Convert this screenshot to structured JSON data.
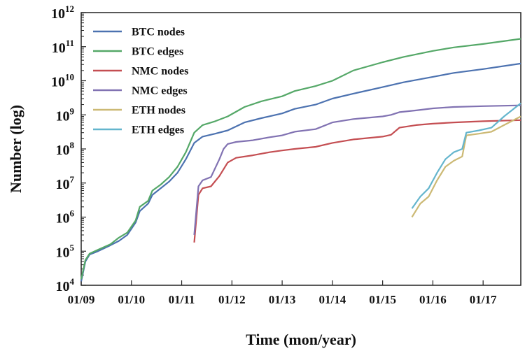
{
  "chart_data": {
    "type": "line",
    "xlabel": "Time (mon/year)",
    "ylabel": "Number (log)",
    "yscale": "log",
    "ylim": [
      10000,
      1000000000000
    ],
    "xlim": [
      "01/09",
      "10/17"
    ],
    "x_ticks": [
      "01/09",
      "01/10",
      "01/11",
      "01/12",
      "01/13",
      "01/14",
      "01/15",
      "01/16",
      "01/17"
    ],
    "y_ticks": [
      {
        "value": 10000,
        "base": "10",
        "exp": "4"
      },
      {
        "value": 100000,
        "base": "10",
        "exp": "5"
      },
      {
        "value": 1000000,
        "base": "10",
        "exp": "6"
      },
      {
        "value": 10000000,
        "base": "10",
        "exp": "7"
      },
      {
        "value": 100000000,
        "base": "10",
        "exp": "8"
      },
      {
        "value": 1000000000,
        "base": "10",
        "exp": "9"
      },
      {
        "value": 10000000000,
        "base": "10",
        "exp": "10"
      },
      {
        "value": 100000000000,
        "base": "10",
        "exp": "11"
      },
      {
        "value": 1000000000000,
        "base": "10",
        "exp": "12"
      }
    ],
    "grid": false,
    "legend_position": "top-left",
    "series": [
      {
        "name": "BTC nodes",
        "color": "#4c72b0",
        "points": [
          [
            "01/09",
            13000
          ],
          [
            "02/09",
            50000
          ],
          [
            "03/09",
            80000
          ],
          [
            "05/09",
            100000
          ],
          [
            "08/09",
            150000
          ],
          [
            "10/09",
            200000
          ],
          [
            "12/09",
            300000
          ],
          [
            "02/10",
            700000
          ],
          [
            "03/10",
            1500000
          ],
          [
            "05/10",
            2500000
          ],
          [
            "06/10",
            4500000
          ],
          [
            "08/10",
            7000000
          ],
          [
            "10/10",
            11000000
          ],
          [
            "12/10",
            20000000
          ],
          [
            "02/11",
            50000000
          ],
          [
            "04/11",
            150000000
          ],
          [
            "06/11",
            230000000
          ],
          [
            "09/11",
            280000000
          ],
          [
            "12/11",
            350000000
          ],
          [
            "04/12",
            600000000
          ],
          [
            "08/12",
            800000000
          ],
          [
            "01/13",
            1100000000
          ],
          [
            "04/13",
            1500000000
          ],
          [
            "09/13",
            2000000000
          ],
          [
            "01/14",
            3000000000
          ],
          [
            "06/14",
            4200000000
          ],
          [
            "01/15",
            6500000000
          ],
          [
            "06/15",
            9000000000
          ],
          [
            "01/16",
            13000000000
          ],
          [
            "06/16",
            17000000000
          ],
          [
            "01/17",
            22000000000
          ],
          [
            "10/17",
            32000000000
          ]
        ]
      },
      {
        "name": "BTC edges",
        "color": "#55a868",
        "points": [
          [
            "01/09",
            15000
          ],
          [
            "02/09",
            55000
          ],
          [
            "03/09",
            85000
          ],
          [
            "05/09",
            110000
          ],
          [
            "08/09",
            160000
          ],
          [
            "10/09",
            250000
          ],
          [
            "12/09",
            350000
          ],
          [
            "02/10",
            800000
          ],
          [
            "03/10",
            2000000
          ],
          [
            "05/10",
            3000000
          ],
          [
            "06/10",
            6000000
          ],
          [
            "08/10",
            9000000
          ],
          [
            "10/10",
            15000000
          ],
          [
            "12/10",
            30000000
          ],
          [
            "02/11",
            80000000
          ],
          [
            "04/11",
            300000000
          ],
          [
            "06/11",
            500000000
          ],
          [
            "09/11",
            650000000
          ],
          [
            "12/11",
            900000000
          ],
          [
            "04/12",
            1700000000
          ],
          [
            "08/12",
            2500000000
          ],
          [
            "01/13",
            3500000000
          ],
          [
            "04/13",
            5000000000
          ],
          [
            "09/13",
            7000000000
          ],
          [
            "01/14",
            10000000000
          ],
          [
            "06/14",
            20000000000
          ],
          [
            "01/15",
            35000000000
          ],
          [
            "06/15",
            50000000000
          ],
          [
            "01/16",
            75000000000
          ],
          [
            "06/16",
            95000000000
          ],
          [
            "01/17",
            120000000000
          ],
          [
            "10/17",
            170000000000
          ]
        ]
      },
      {
        "name": "NMC nodes",
        "color": "#c44e52",
        "points": [
          [
            "04/11",
            180000
          ],
          [
            "05/11",
            4500000
          ],
          [
            "06/11",
            7000000
          ],
          [
            "08/11",
            8000000
          ],
          [
            "10/11",
            16000000
          ],
          [
            "12/11",
            40000000
          ],
          [
            "02/12",
            55000000
          ],
          [
            "06/12",
            65000000
          ],
          [
            "10/12",
            80000000
          ],
          [
            "01/13",
            90000000
          ],
          [
            "04/13",
            100000000
          ],
          [
            "09/13",
            115000000
          ],
          [
            "01/14",
            150000000
          ],
          [
            "06/14",
            190000000
          ],
          [
            "01/15",
            230000000
          ],
          [
            "03/15",
            260000000
          ],
          [
            "05/15",
            420000000
          ],
          [
            "09/15",
            500000000
          ],
          [
            "01/16",
            550000000
          ],
          [
            "06/16",
            600000000
          ],
          [
            "01/17",
            650000000
          ],
          [
            "10/17",
            700000000
          ]
        ]
      },
      {
        "name": "NMC edges",
        "color": "#8172b2",
        "points": [
          [
            "04/11",
            300000
          ],
          [
            "05/11",
            8000000
          ],
          [
            "06/11",
            12000000
          ],
          [
            "08/11",
            15000000
          ],
          [
            "10/11",
            50000000
          ],
          [
            "11/11",
            100000000
          ],
          [
            "12/11",
            140000000
          ],
          [
            "02/12",
            160000000
          ],
          [
            "06/12",
            180000000
          ],
          [
            "10/12",
            220000000
          ],
          [
            "01/13",
            250000000
          ],
          [
            "04/13",
            320000000
          ],
          [
            "09/13",
            380000000
          ],
          [
            "01/14",
            600000000
          ],
          [
            "06/14",
            750000000
          ],
          [
            "01/15",
            900000000
          ],
          [
            "03/15",
            1000000000
          ],
          [
            "05/15",
            1200000000
          ],
          [
            "09/15",
            1350000000
          ],
          [
            "01/16",
            1550000000
          ],
          [
            "06/16",
            1700000000
          ],
          [
            "01/17",
            1800000000
          ],
          [
            "10/17",
            1900000000
          ]
        ]
      },
      {
        "name": "ETH nodes",
        "color": "#ccb974",
        "points": [
          [
            "08/15",
            1000000
          ],
          [
            "10/15",
            2500000
          ],
          [
            "12/15",
            4000000
          ],
          [
            "02/16",
            12000000
          ],
          [
            "04/16",
            30000000
          ],
          [
            "06/16",
            45000000
          ],
          [
            "08/16",
            60000000
          ],
          [
            "09/16",
            250000000
          ],
          [
            "12/16",
            280000000
          ],
          [
            "03/17",
            320000000
          ],
          [
            "06/17",
            500000000
          ],
          [
            "10/17",
            900000000
          ]
        ]
      },
      {
        "name": "ETH edges",
        "color": "#64b5cd",
        "points": [
          [
            "08/15",
            1800000
          ],
          [
            "10/15",
            4000000
          ],
          [
            "12/15",
            7000000
          ],
          [
            "02/16",
            20000000
          ],
          [
            "04/16",
            50000000
          ],
          [
            "06/16",
            80000000
          ],
          [
            "08/16",
            100000000
          ],
          [
            "09/16",
            300000000
          ],
          [
            "12/16",
            350000000
          ],
          [
            "03/17",
            420000000
          ],
          [
            "06/17",
            900000000
          ],
          [
            "10/17",
            2200000000
          ]
        ]
      }
    ]
  }
}
